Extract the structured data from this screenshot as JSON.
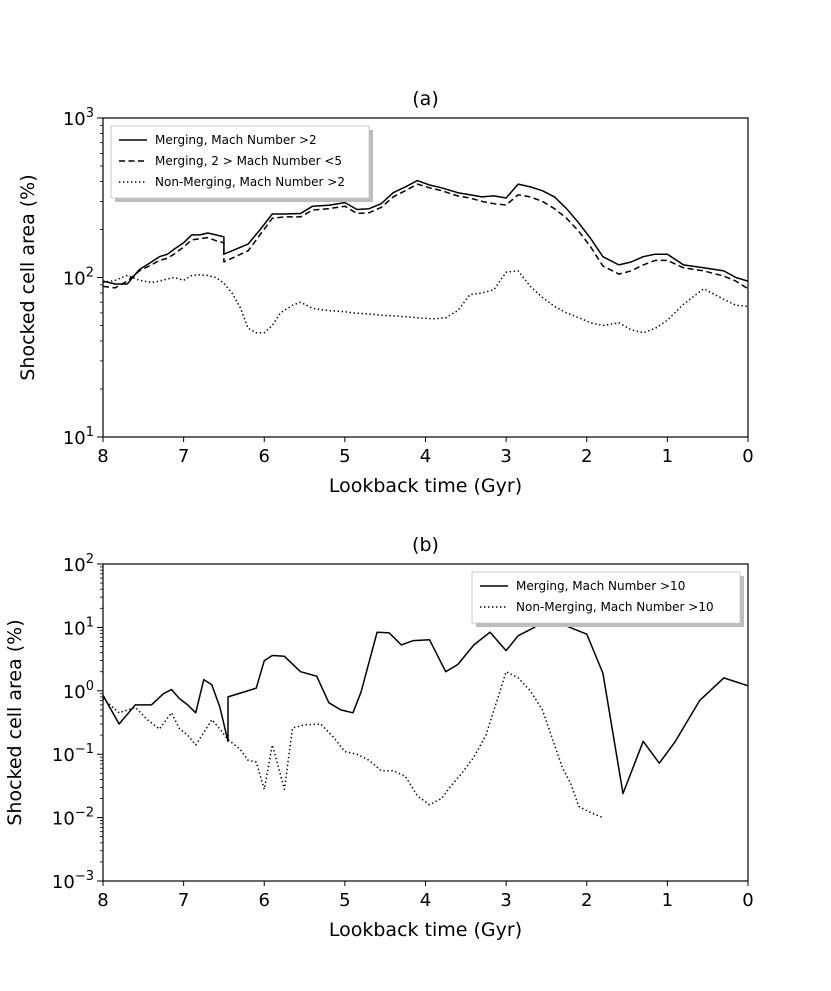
{
  "chart_data": [
    {
      "id": "a",
      "type": "line",
      "title": "(a)",
      "xlabel": "Lookback time (Gyr)",
      "ylabel": "Shocked cell area (%)",
      "yscale": "log",
      "xlim": [
        8,
        0
      ],
      "ylim": [
        10,
        1000
      ],
      "xticks": [
        "8",
        "7",
        "6",
        "5",
        "4",
        "3",
        "2",
        "1",
        "0"
      ],
      "yticks": [
        {
          "base": "10",
          "exp": "1",
          "value": 10
        },
        {
          "base": "10",
          "exp": "2",
          "value": 100
        },
        {
          "base": "10",
          "exp": "3",
          "value": 1000
        }
      ],
      "legend_position": "upper-left",
      "series": [
        {
          "name": "Merging, Mach Number >2",
          "style": "solid",
          "x": [
            8.0,
            7.85,
            7.7,
            7.55,
            7.4,
            7.3,
            7.2,
            7.12,
            7.0,
            6.9,
            6.8,
            6.7,
            6.6,
            6.5,
            6.5,
            6.2,
            6.05,
            5.9,
            5.75,
            5.55,
            5.4,
            5.2,
            5.0,
            4.85,
            4.7,
            4.55,
            4.4,
            4.25,
            4.1,
            3.95,
            3.8,
            3.6,
            3.45,
            3.3,
            3.15,
            3.0,
            2.85,
            2.7,
            2.55,
            2.4,
            2.25,
            2.1,
            1.95,
            1.8,
            1.6,
            1.45,
            1.3,
            1.15,
            1.0,
            0.8,
            0.55,
            0.3,
            0.15,
            0.0
          ],
          "values": [
            95,
            91,
            91,
            112,
            125,
            135,
            140,
            150,
            165,
            185,
            185,
            190,
            185,
            180,
            140,
            162,
            200,
            250,
            250,
            252,
            280,
            284,
            295,
            267,
            270,
            290,
            340,
            370,
            405,
            380,
            365,
            340,
            330,
            320,
            325,
            315,
            385,
            370,
            350,
            320,
            270,
            220,
            175,
            135,
            120,
            125,
            135,
            140,
            140,
            120,
            115,
            110,
            100,
            95
          ]
        },
        {
          "name": "Merging, 2 > Mach Number <5",
          "style": "dashed",
          "x": [
            8.0,
            7.85,
            7.7,
            7.55,
            7.4,
            7.3,
            7.2,
            7.12,
            7.0,
            6.9,
            6.8,
            6.7,
            6.6,
            6.5,
            6.5,
            6.2,
            6.05,
            5.9,
            5.75,
            5.55,
            5.4,
            5.2,
            5.0,
            4.85,
            4.7,
            4.55,
            4.4,
            4.25,
            4.1,
            3.95,
            3.8,
            3.6,
            3.45,
            3.3,
            3.15,
            3.0,
            2.85,
            2.7,
            2.55,
            2.4,
            2.25,
            2.1,
            1.95,
            1.8,
            1.6,
            1.45,
            1.3,
            1.15,
            1.0,
            0.8,
            0.55,
            0.3,
            0.15,
            0.0
          ],
          "values": [
            88,
            86,
            95,
            110,
            120,
            128,
            132,
            140,
            155,
            172,
            175,
            178,
            170,
            165,
            125,
            147,
            186,
            235,
            240,
            240,
            265,
            270,
            280,
            252,
            255,
            275,
            320,
            350,
            385,
            365,
            350,
            325,
            315,
            300,
            290,
            285,
            330,
            320,
            300,
            270,
            235,
            195,
            155,
            118,
            105,
            110,
            120,
            128,
            128,
            115,
            110,
            102,
            95,
            85
          ]
        },
        {
          "name": "Non-Merging, Mach Number >2",
          "style": "dotted",
          "x": [
            8.0,
            7.85,
            7.7,
            7.55,
            7.4,
            7.3,
            7.2,
            7.12,
            7.0,
            6.9,
            6.8,
            6.7,
            6.6,
            6.5,
            6.4,
            6.3,
            6.2,
            6.1,
            6.0,
            5.9,
            5.8,
            5.65,
            5.55,
            5.4,
            5.2,
            5.0,
            4.9,
            4.7,
            4.55,
            4.3,
            4.1,
            3.9,
            3.75,
            3.6,
            3.45,
            3.3,
            3.15,
            3.0,
            2.85,
            2.7,
            2.55,
            2.4,
            2.25,
            2.1,
            1.95,
            1.8,
            1.6,
            1.45,
            1.3,
            1.15,
            1.0,
            0.8,
            0.55,
            0.3,
            0.15,
            0.0
          ],
          "values": [
            93,
            96,
            103,
            96,
            93,
            95,
            98,
            100,
            96,
            103,
            104,
            103,
            100,
            92,
            80,
            65,
            48,
            45,
            45,
            50,
            60,
            67,
            70,
            64,
            62,
            61,
            60,
            59,
            58,
            57,
            56,
            55,
            56,
            62,
            78,
            80,
            84,
            108,
            110,
            88,
            75,
            66,
            60,
            56,
            52,
            50,
            52,
            47,
            45,
            48,
            54,
            68,
            85,
            73,
            67,
            66
          ]
        }
      ]
    },
    {
      "id": "b",
      "type": "line",
      "title": "(b)",
      "xlabel": "Lookback time (Gyr)",
      "ylabel": "Shocked cell area (%)",
      "yscale": "log",
      "xlim": [
        8,
        0
      ],
      "ylim": [
        0.001,
        100
      ],
      "xticks": [
        "8",
        "7",
        "6",
        "5",
        "4",
        "3",
        "2",
        "1",
        "0"
      ],
      "yticks": [
        {
          "base": "10",
          "exp": "−3",
          "value": 0.001
        },
        {
          "base": "10",
          "exp": "−2",
          "value": 0.01
        },
        {
          "base": "10",
          "exp": "−1",
          "value": 0.1
        },
        {
          "base": "10",
          "exp": "0",
          "value": 1
        },
        {
          "base": "10",
          "exp": "1",
          "value": 10
        },
        {
          "base": "10",
          "exp": "2",
          "value": 100
        }
      ],
      "legend_position": "upper-right",
      "series": [
        {
          "name": "Merging, Mach Number >10",
          "style": "solid",
          "x": [
            8.0,
            7.8,
            7.6,
            7.4,
            7.25,
            7.15,
            7.05,
            6.95,
            6.85,
            6.75,
            6.65,
            6.55,
            6.45,
            6.45,
            6.1,
            6.0,
            5.9,
            5.75,
            5.55,
            5.35,
            5.2,
            5.05,
            4.9,
            4.8,
            4.6,
            4.45,
            4.3,
            4.15,
            3.95,
            3.75,
            3.6,
            3.4,
            3.2,
            3.0,
            2.85,
            2.65,
            2.45,
            2.25,
            2.0,
            1.8,
            1.55,
            1.3,
            1.1,
            0.9,
            0.6,
            0.3,
            0.0
          ],
          "values": [
            0.85,
            0.3,
            0.6,
            0.6,
            0.9,
            1.05,
            0.75,
            0.6,
            0.45,
            1.5,
            1.25,
            0.55,
            0.16,
            0.8,
            1.1,
            3.0,
            3.6,
            3.5,
            2.0,
            1.7,
            0.65,
            0.5,
            0.45,
            0.95,
            8.4,
            8.2,
            5.3,
            6.2,
            6.4,
            2.0,
            2.6,
            5.3,
            8.4,
            4.3,
            7.4,
            10.0,
            15.5,
            10.5,
            7.8,
            1.9,
            0.024,
            0.16,
            0.072,
            0.16,
            0.7,
            1.6,
            1.2
          ]
        },
        {
          "name": "Non-Merging, Mach Number >10",
          "style": "dotted",
          "x": [
            8.0,
            7.8,
            7.6,
            7.45,
            7.3,
            7.15,
            7.05,
            6.95,
            6.85,
            6.75,
            6.65,
            6.55,
            6.45,
            6.3,
            6.2,
            6.1,
            6.0,
            5.9,
            5.75,
            5.65,
            5.5,
            5.3,
            5.15,
            5.0,
            4.85,
            4.7,
            4.55,
            4.4,
            4.25,
            4.1,
            3.95,
            3.8,
            3.7,
            3.55,
            3.4,
            3.25,
            3.1,
            3.0,
            2.85,
            2.7,
            2.55,
            2.4,
            2.3,
            2.2,
            2.1,
            1.95,
            1.8
          ],
          "values": [
            0.75,
            0.45,
            0.55,
            0.35,
            0.25,
            0.45,
            0.25,
            0.2,
            0.14,
            0.22,
            0.35,
            0.25,
            0.17,
            0.12,
            0.08,
            0.075,
            0.028,
            0.14,
            0.028,
            0.26,
            0.29,
            0.3,
            0.19,
            0.11,
            0.1,
            0.08,
            0.055,
            0.055,
            0.045,
            0.022,
            0.016,
            0.02,
            0.03,
            0.05,
            0.09,
            0.2,
            0.8,
            2.0,
            1.6,
            1.0,
            0.5,
            0.14,
            0.06,
            0.035,
            0.015,
            0.012,
            0.01
          ]
        }
      ]
    }
  ]
}
